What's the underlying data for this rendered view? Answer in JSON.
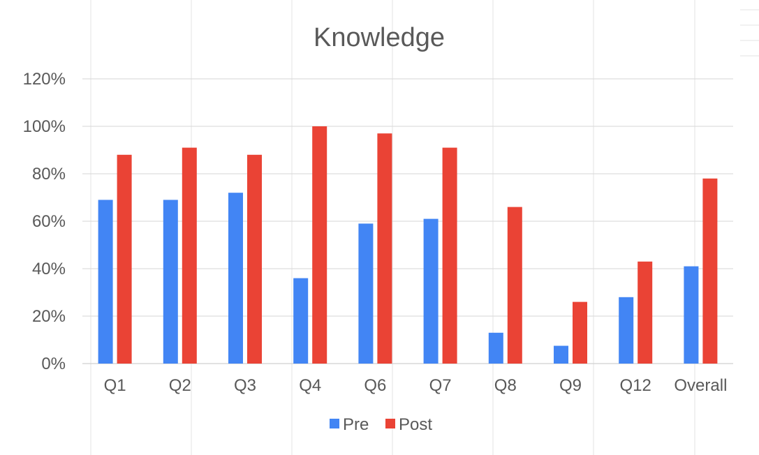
{
  "colors": {
    "pre": "#4285F4",
    "post": "#EA4335",
    "grid": "#D6D6D6",
    "text": "#595959"
  },
  "chart_data": {
    "type": "bar",
    "title": "Knowledge",
    "xlabel": "",
    "ylabel": "",
    "categories": [
      "Q1",
      "Q2",
      "Q3",
      "Q4",
      "Q6",
      "Q7",
      "Q8",
      "Q9",
      "Q12",
      "Overall"
    ],
    "series": [
      {
        "name": "Pre",
        "values": [
          69,
          69,
          72,
          36,
          59,
          61,
          13,
          7.5,
          28,
          41
        ]
      },
      {
        "name": "Post",
        "values": [
          88,
          91,
          88,
          100,
          97,
          91,
          66,
          26,
          43,
          78
        ]
      }
    ],
    "ylim": [
      0,
      120
    ],
    "yticks": [
      "0%",
      "20%",
      "40%",
      "60%",
      "80%",
      "100%",
      "120%"
    ],
    "ytick_values": [
      0,
      20,
      40,
      60,
      80,
      100,
      120
    ],
    "grid": true,
    "legend": "bottom"
  }
}
